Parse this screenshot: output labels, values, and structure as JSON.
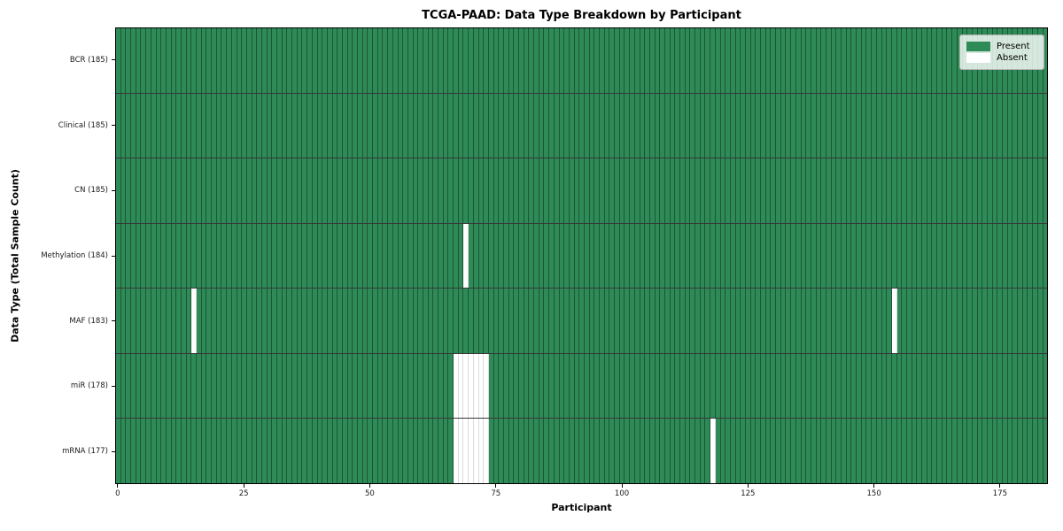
{
  "chart_data": {
    "type": "heatmap",
    "title": "TCGA-PAAD: Data Type Breakdown by Participant",
    "xlabel": "Participant",
    "ylabel": "Data Type (Total Sample Count)",
    "x_ticks": [
      0,
      25,
      50,
      75,
      100,
      125,
      150,
      175
    ],
    "n_participants": 185,
    "xlim": [
      -0.5,
      184.5
    ],
    "grid": false,
    "legend": {
      "position": "upper right",
      "present_label": "Present",
      "absent_label": "Absent"
    },
    "colors": {
      "present": "#2e8b57",
      "absent": "#ffffff"
    },
    "rows": [
      {
        "label": "BCR (185)",
        "data_type": "BCR",
        "present_count": 185,
        "absent_participants": []
      },
      {
        "label": "Clinical (185)",
        "data_type": "Clinical",
        "present_count": 185,
        "absent_participants": []
      },
      {
        "label": "CN (185)",
        "data_type": "CN",
        "present_count": 185,
        "absent_participants": []
      },
      {
        "label": "Methylation (184)",
        "data_type": "Methylation",
        "present_count": 184,
        "absent_participants": [
          69
        ]
      },
      {
        "label": "MAF (183)",
        "data_type": "MAF",
        "present_count": 183,
        "absent_participants": [
          15,
          154
        ]
      },
      {
        "label": "miR (178)",
        "data_type": "miR",
        "present_count": 178,
        "absent_participants": [
          67,
          68,
          69,
          70,
          71,
          72,
          73
        ]
      },
      {
        "label": "mRNA (177)",
        "data_type": "mRNA",
        "present_count": 177,
        "absent_participants": [
          67,
          68,
          69,
          70,
          71,
          72,
          73,
          118
        ]
      }
    ]
  }
}
